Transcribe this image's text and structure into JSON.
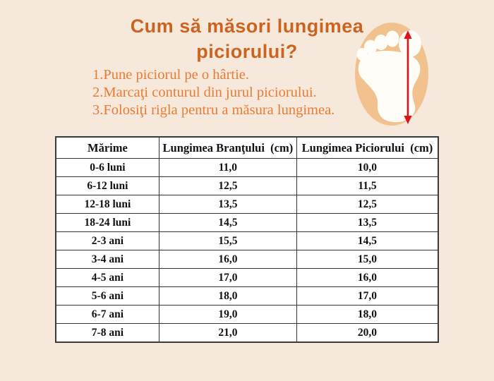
{
  "page": {
    "background_color": "#f6e8da"
  },
  "title": {
    "line1": "Cum să măsori lungimea",
    "line2": "piciorului?",
    "color": "#ca6420"
  },
  "steps": {
    "color": "#e87c36",
    "items": [
      "1.Pune piciorul pe o hârtie.",
      "2.Marcaţi conturul din jurul piciorului.",
      "3.Folosiţi rigla pentru a măsura lungimea."
    ]
  },
  "illustration": {
    "name": "foot-with-measurement-arrow",
    "blob_color": "#f2c28e",
    "foot_color": "#fffdf7",
    "arrow_color": "#e01219"
  },
  "table": {
    "headers": [
      "Mărime",
      "Lungimea Branţului  (cm)",
      "Lungimea Piciorului  (cm)"
    ],
    "rows": [
      [
        "0-6 luni",
        "11,0",
        "10,0"
      ],
      [
        "6-12 luni",
        "12,5",
        "11,5"
      ],
      [
        "12-18 luni",
        "13,5",
        "12,5"
      ],
      [
        "18-24 luni",
        "14,5",
        "13,5"
      ],
      [
        "2-3 ani",
        "15,5",
        "14,5"
      ],
      [
        "3-4 ani",
        "16,0",
        "15,0"
      ],
      [
        "4-5 ani",
        "17,0",
        "16,0"
      ],
      [
        "5-6 ani",
        "18,0",
        "17,0"
      ],
      [
        "6-7 ani",
        "19,0",
        "18,0"
      ],
      [
        "7-8 ani",
        "21,0",
        "20,0"
      ]
    ]
  }
}
